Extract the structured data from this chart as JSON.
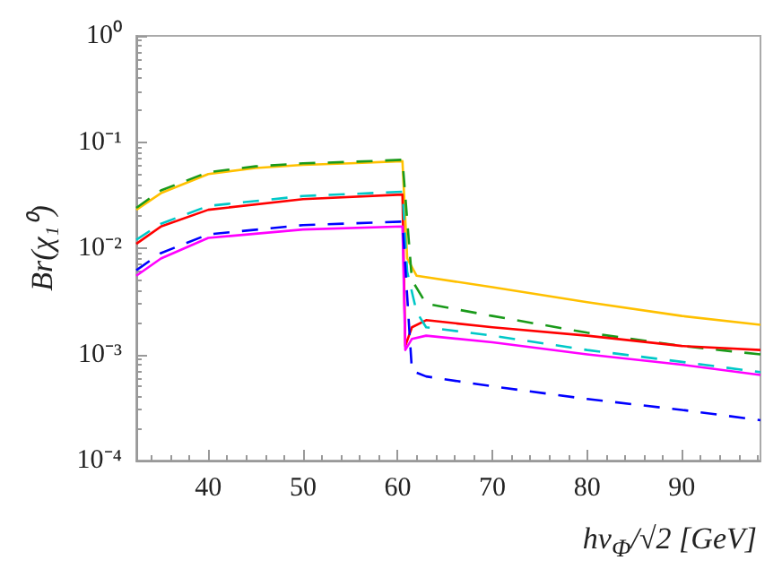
{
  "chart_data": {
    "type": "line",
    "xlabel": "hv$_{Φ}$/√2 [GeV]",
    "ylabel": "Br(χ₁⁰)",
    "log": "y",
    "grid": false,
    "marker": "none",
    "xlim": [
      32.4,
      98.3
    ],
    "xticks": [
      40,
      50,
      60,
      70,
      80,
      90
    ],
    "ylim": [
      0.0001,
      1
    ],
    "yticks": [
      {
        "value": 0.0001,
        "label": "10⁻⁴"
      },
      {
        "value": 0.001,
        "label": "10⁻³"
      },
      {
        "value": 0.01,
        "label": "10⁻²"
      },
      {
        "value": 0.1,
        "label": "10⁻¹"
      },
      {
        "value": 1,
        "label": "10⁰"
      }
    ],
    "series": [
      {
        "color": "#ffc000",
        "line_style": "solid",
        "x": [
          32.4,
          35,
          40,
          45,
          50,
          55,
          60.5,
          61,
          62,
          70,
          80,
          90,
          98.3
        ],
        "values": [
          0.023,
          0.033,
          0.05,
          0.057,
          0.061,
          0.063,
          0.066,
          0.008,
          0.0055,
          0.0043,
          0.0031,
          0.0023,
          0.0019
        ]
      },
      {
        "color": "#1a9a1a",
        "line_style": "dashed",
        "x": [
          32.4,
          35,
          40,
          45,
          50,
          55,
          60.5,
          61.5,
          63,
          70,
          80,
          90,
          98.3
        ],
        "values": [
          0.024,
          0.035,
          0.052,
          0.059,
          0.063,
          0.065,
          0.068,
          0.005,
          0.003,
          0.0023,
          0.0016,
          0.0012,
          0.001
        ]
      },
      {
        "color": "#ff0000",
        "line_style": "solid",
        "x": [
          32.4,
          35,
          40,
          50,
          60.5,
          60.8,
          61.5,
          63,
          70,
          80,
          90,
          98.3
        ],
        "values": [
          0.011,
          0.016,
          0.023,
          0.029,
          0.032,
          0.0012,
          0.0018,
          0.0021,
          0.0018,
          0.0015,
          0.0012,
          0.0011
        ]
      },
      {
        "color": "#00c8c8",
        "line_style": "dashed",
        "x": [
          32.4,
          35,
          40,
          50,
          60.5,
          61,
          62,
          63,
          70,
          80,
          90,
          98.3
        ],
        "values": [
          0.012,
          0.017,
          0.025,
          0.031,
          0.034,
          0.006,
          0.0025,
          0.0018,
          0.0015,
          0.0011,
          0.00085,
          0.00068
        ]
      },
      {
        "color": "#ff00ff",
        "line_style": "solid",
        "x": [
          32.4,
          35,
          40,
          50,
          60.5,
          60.8,
          61.5,
          63,
          70,
          80,
          90,
          98.3
        ],
        "values": [
          0.0055,
          0.008,
          0.0125,
          0.015,
          0.016,
          0.0011,
          0.0014,
          0.0015,
          0.0013,
          0.001,
          0.0008,
          0.00064
        ]
      },
      {
        "color": "#0000ff",
        "line_style": "dashed",
        "x": [
          32.4,
          35,
          40,
          50,
          60.5,
          61.5,
          63,
          70,
          80,
          90,
          98.3
        ],
        "values": [
          0.0062,
          0.009,
          0.0135,
          0.0165,
          0.0178,
          0.0007,
          0.00062,
          0.0005,
          0.00038,
          0.0003,
          0.00024
        ]
      }
    ]
  }
}
